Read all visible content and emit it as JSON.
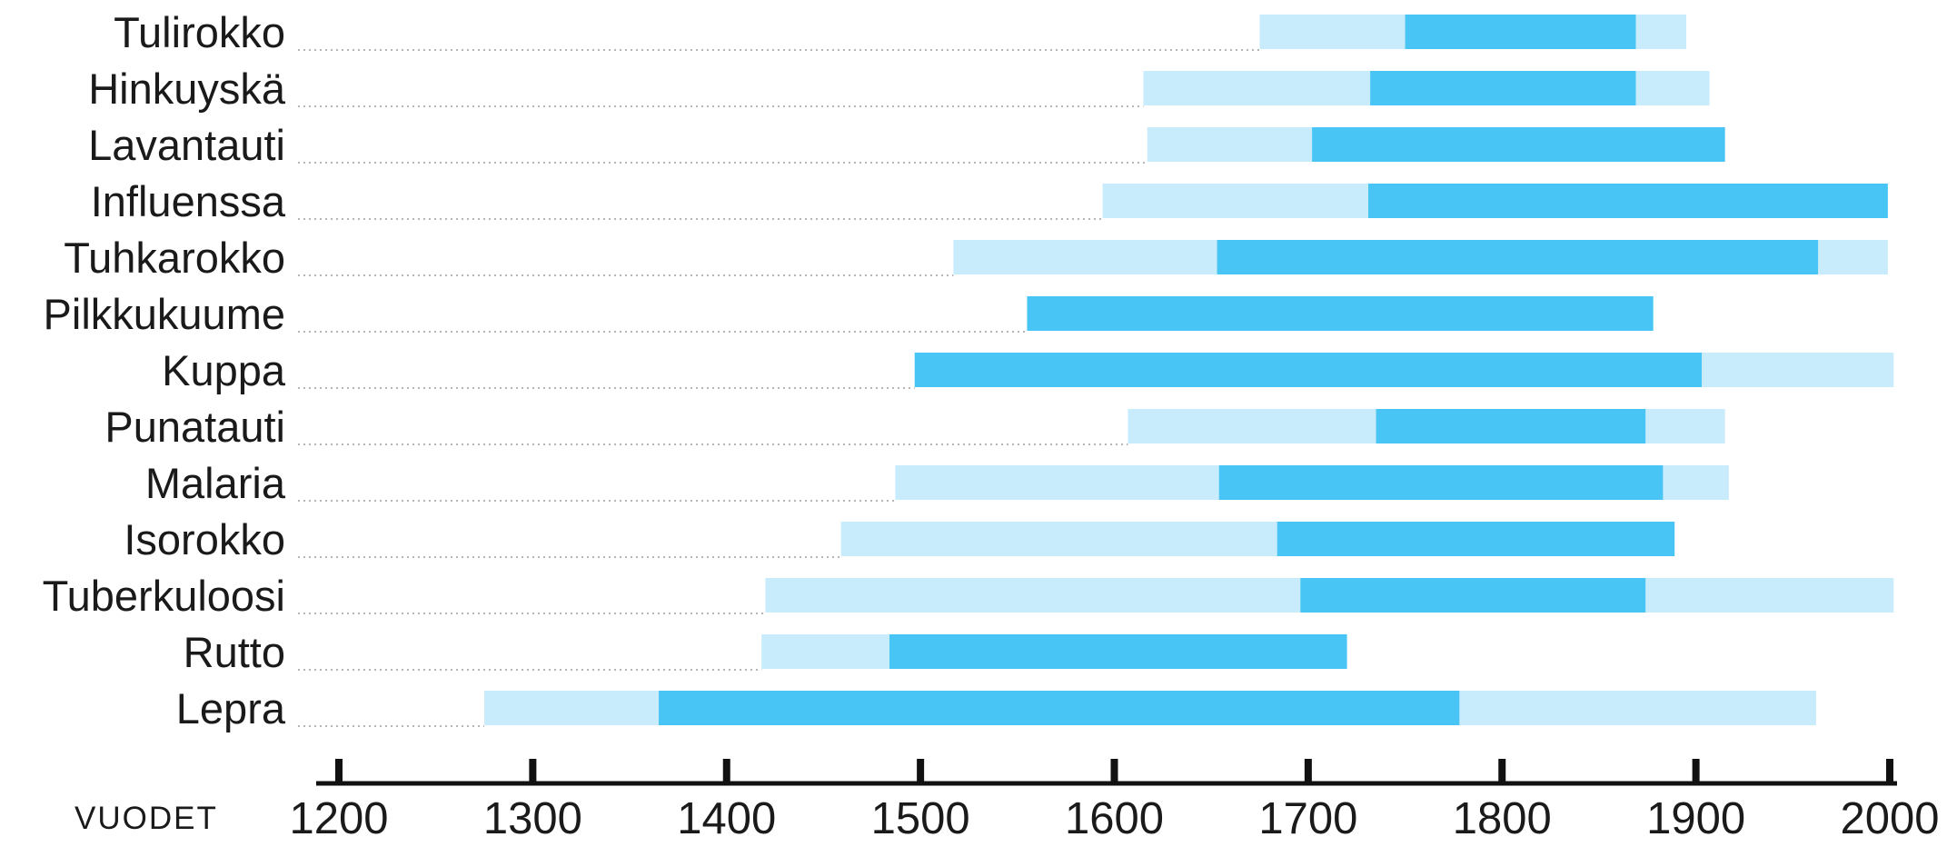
{
  "chart_data": {
    "type": "bar",
    "orientation": "horizontal-range",
    "xlabel": "VUODET",
    "xlim": [
      1200,
      2000
    ],
    "xticks": [
      "1200",
      "1300",
      "1400",
      "1500",
      "1600",
      "1700",
      "1800",
      "1900",
      "2000"
    ],
    "categories": [
      "Tulirokko",
      "Hinkuyskä",
      "Lavantauti",
      "Influenssa",
      "Tuhkarokko",
      "Pilkkukuume",
      "Kuppa",
      "Punatauti",
      "Malaria",
      "Isorokko",
      "Tuberkuloosi",
      "Rutto",
      "Lepra"
    ],
    "series": [
      {
        "color": "#c8ecfb",
        "ranges": [
          [
            1675,
            1895
          ],
          [
            1615,
            1907
          ],
          [
            1617,
            1915
          ],
          [
            1594,
            1999
          ],
          [
            1517,
            1999
          ],
          null,
          [
            1903,
            2002
          ],
          [
            1607,
            1915
          ],
          [
            1487,
            1917
          ],
          [
            1459,
            1889
          ],
          [
            1420,
            2002
          ],
          [
            1418,
            1720
          ],
          [
            1275,
            1962
          ]
        ]
      },
      {
        "color": "#48c5f5",
        "ranges": [
          [
            1750,
            1869
          ],
          [
            1732,
            1869
          ],
          [
            1702,
            1915
          ],
          [
            1731,
            1999
          ],
          [
            1653,
            1963
          ],
          [
            1555,
            1878
          ],
          [
            1497,
            1903
          ],
          [
            1735,
            1874
          ],
          [
            1654,
            1883
          ],
          [
            1684,
            1889
          ],
          [
            1696,
            1874
          ],
          [
            1484,
            1720
          ],
          [
            1365,
            1778
          ]
        ]
      }
    ]
  }
}
